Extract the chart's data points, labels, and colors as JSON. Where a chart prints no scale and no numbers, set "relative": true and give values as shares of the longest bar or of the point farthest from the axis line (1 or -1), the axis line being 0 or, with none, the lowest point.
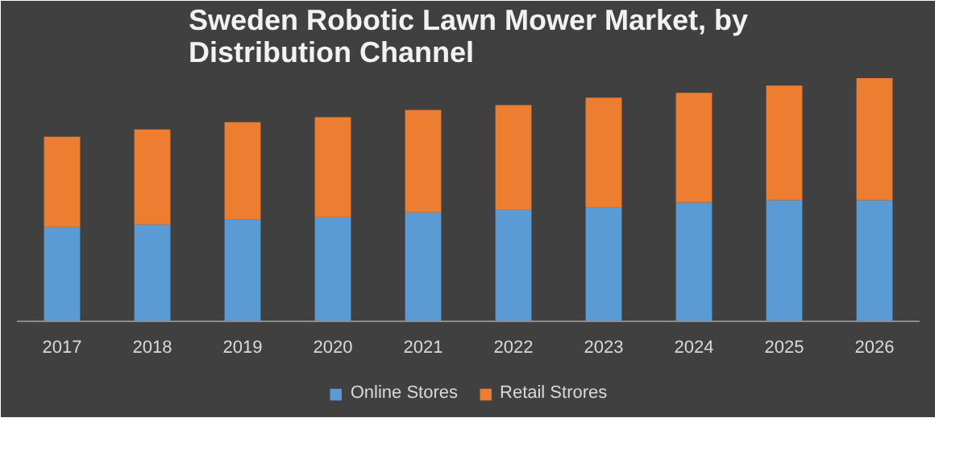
{
  "chart_data": {
    "type": "bar",
    "title": "Sweden Robotic Lawn Mower Market, by Distribution Channel",
    "categories": [
      "2017",
      "2018",
      "2019",
      "2020",
      "2021",
      "2022",
      "2023",
      "2024",
      "2025",
      "2026"
    ],
    "relative": true,
    "stacked": true,
    "legend": "bottom",
    "series": [
      {
        "name": "Online Stores",
        "color": "#5b9bd5",
        "values": [
          0.39,
          0.4,
          0.42,
          0.43,
          0.45,
          0.46,
          0.47,
          0.49,
          0.5,
          0.5
        ]
      },
      {
        "name": "Retail Strores",
        "color": "#ed7d31",
        "values": [
          0.37,
          0.39,
          0.4,
          0.41,
          0.42,
          0.43,
          0.45,
          0.45,
          0.47,
          0.5
        ]
      }
    ]
  }
}
